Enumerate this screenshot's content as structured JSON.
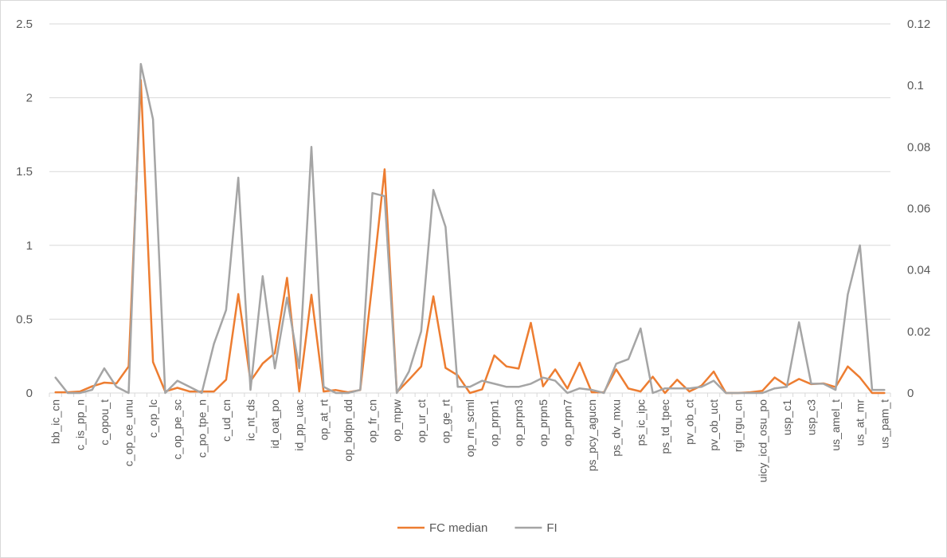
{
  "chart_data": {
    "type": "line",
    "title": "",
    "xlabel": "",
    "ylabel": "",
    "y2label": "",
    "ylim": [
      0,
      2.5
    ],
    "y2lim": [
      0,
      0.12
    ],
    "yticks": [
      "0",
      "0.5",
      "1",
      "1.5",
      "2",
      "2.5"
    ],
    "y2ticks": [
      "0",
      "0.02",
      "0.04",
      "0.06",
      "0.08",
      "0.1",
      "0.12"
    ],
    "grid": true,
    "legend_position": "bottom",
    "categories": [
      "bb_ic_cn",
      "",
      "c_is_pp_n",
      "",
      "c_opou_t",
      "",
      "c_op_ce_unu",
      "",
      "c_op_lc",
      "",
      "c_op_pe_sc",
      "",
      "c_po_tpe_n",
      "",
      "c_ud_cn",
      "",
      "ic_nt_ds",
      "",
      "id_oat_po",
      "",
      "id_pp_uac",
      "",
      "op_at_rt",
      "",
      "op_bdpn_dd",
      "",
      "op_fr_cn",
      "",
      "op_mpw",
      "",
      "op_ur_ct",
      "",
      "op_ge_rt",
      "",
      "op_rn_scml",
      "",
      "op_prpn1",
      "",
      "op_prpn3",
      "",
      "op_prpn5",
      "",
      "op_prpn7",
      "",
      "ps_pcy_agucn",
      "",
      "ps_dv_mxu",
      "",
      "ps_ic_ipc",
      "",
      "ps_td_tpec",
      "",
      "pv_ob_ct",
      "",
      "pv_ob_uct",
      "",
      "rgi_rgu_cn",
      "",
      "uicy_icd_osu_po",
      "",
      "usp_c1",
      "",
      "usp_c3",
      "",
      "us_amel_t",
      "",
      "us_at_mr",
      "",
      "us_pam_t"
    ],
    "series": [
      {
        "name": "FC median",
        "color": "#ed7d31",
        "axis": "primary",
        "values": [
          0.005,
          0.005,
          0.01,
          0.045,
          0.07,
          0.065,
          0.18,
          2.12,
          0.21,
          0.01,
          0.035,
          0.01,
          0.01,
          0.01,
          0.09,
          0.67,
          0.08,
          0.2,
          0.27,
          0.78,
          0.01,
          0.665,
          0.01,
          0.02,
          0.005,
          0.02,
          0.75,
          1.515,
          0.005,
          0.09,
          0.18,
          0.655,
          0.17,
          0.12,
          0.0,
          0.025,
          0.255,
          0.18,
          0.165,
          0.475,
          0.045,
          0.16,
          0.03,
          0.205,
          0.005,
          0.005,
          0.16,
          0.03,
          0.01,
          0.11,
          0.0,
          0.09,
          0.01,
          0.05,
          0.145,
          0.0,
          0.0,
          0.005,
          0.015,
          0.105,
          0.05,
          0.095,
          0.06,
          0.065,
          0.04,
          0.18,
          0.105,
          0.0,
          0.0
        ]
      },
      {
        "name": "FI",
        "color": "#a5a5a5",
        "axis": "secondary",
        "values": [
          0.005,
          0.0,
          0.0,
          0.001,
          0.008,
          0.002,
          0.0,
          0.107,
          0.089,
          0.0,
          0.004,
          0.002,
          0.0,
          0.016,
          0.027,
          0.07,
          0.001,
          0.038,
          0.008,
          0.031,
          0.008,
          0.08,
          0.002,
          0.0,
          0.0,
          0.001,
          0.065,
          0.064,
          0.0,
          0.007,
          0.02,
          0.066,
          0.054,
          0.002,
          0.002,
          0.004,
          0.003,
          0.002,
          0.002,
          0.003,
          0.005,
          0.004,
          0.0,
          0.0015,
          0.001,
          0.0,
          0.0095,
          0.011,
          0.021,
          0.0,
          0.0015,
          0.0015,
          0.0015,
          0.002,
          0.004,
          0.0,
          0.0,
          0.0,
          0.0,
          0.0015,
          0.002,
          0.023,
          0.003,
          0.003,
          0.001,
          0.032,
          0.048,
          0.001,
          0.001
        ]
      }
    ]
  }
}
